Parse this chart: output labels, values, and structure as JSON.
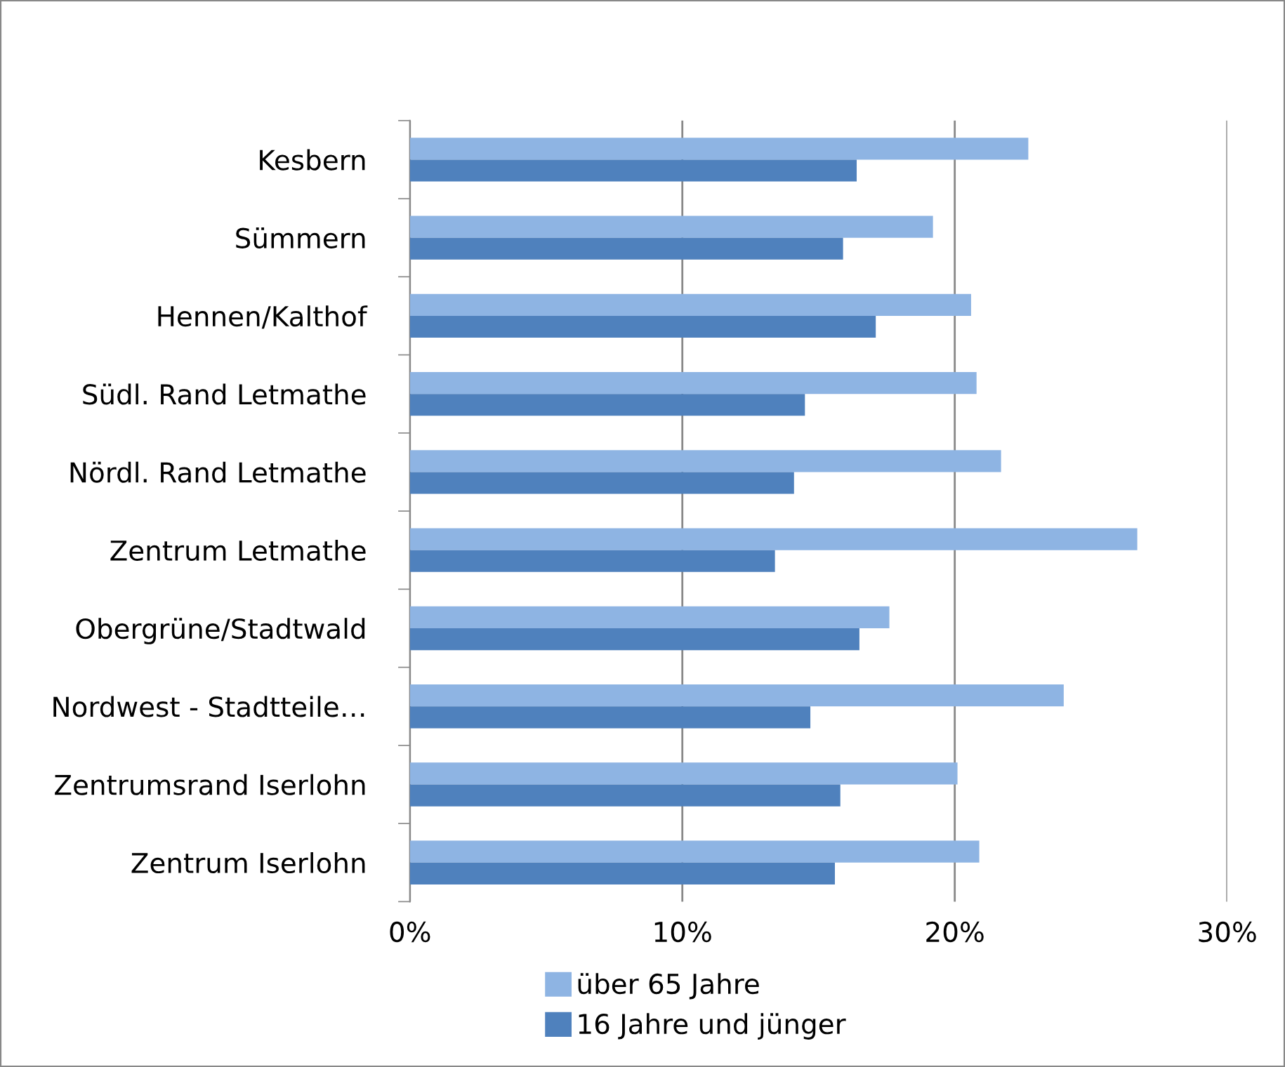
{
  "chart_data": {
    "type": "bar",
    "orientation": "horizontal",
    "categories": [
      "Kesbern",
      "Sümmern",
      "Hennen/Kalthof",
      "Südl. Rand Letmathe",
      "Nördl. Rand Letmathe",
      "Zentrum Letmathe",
      "Obergrüne/Stadtwald",
      "Nordwest - Stadtteile…",
      "Zentrumsrand Iserlohn",
      "Zentrum Iserlohn"
    ],
    "series": [
      {
        "name": "über 65 Jahre",
        "color": "#8eb4e3",
        "values": [
          22.7,
          19.2,
          20.6,
          20.8,
          21.7,
          26.7,
          17.6,
          24.0,
          20.1,
          20.9
        ]
      },
      {
        "name": "16 Jahre und jünger",
        "color": "#4f81bd",
        "values": [
          16.4,
          15.9,
          17.1,
          14.5,
          14.1,
          13.4,
          16.5,
          14.7,
          15.8,
          15.6
        ]
      }
    ],
    "xlim": [
      0,
      30
    ],
    "xticks": [
      {
        "value": 0,
        "label": "0%"
      },
      {
        "value": 10,
        "label": "10%"
      },
      {
        "value": 20,
        "label": "20%"
      },
      {
        "value": 30,
        "label": "30%"
      }
    ],
    "grid": "x",
    "legend": "bottom"
  }
}
